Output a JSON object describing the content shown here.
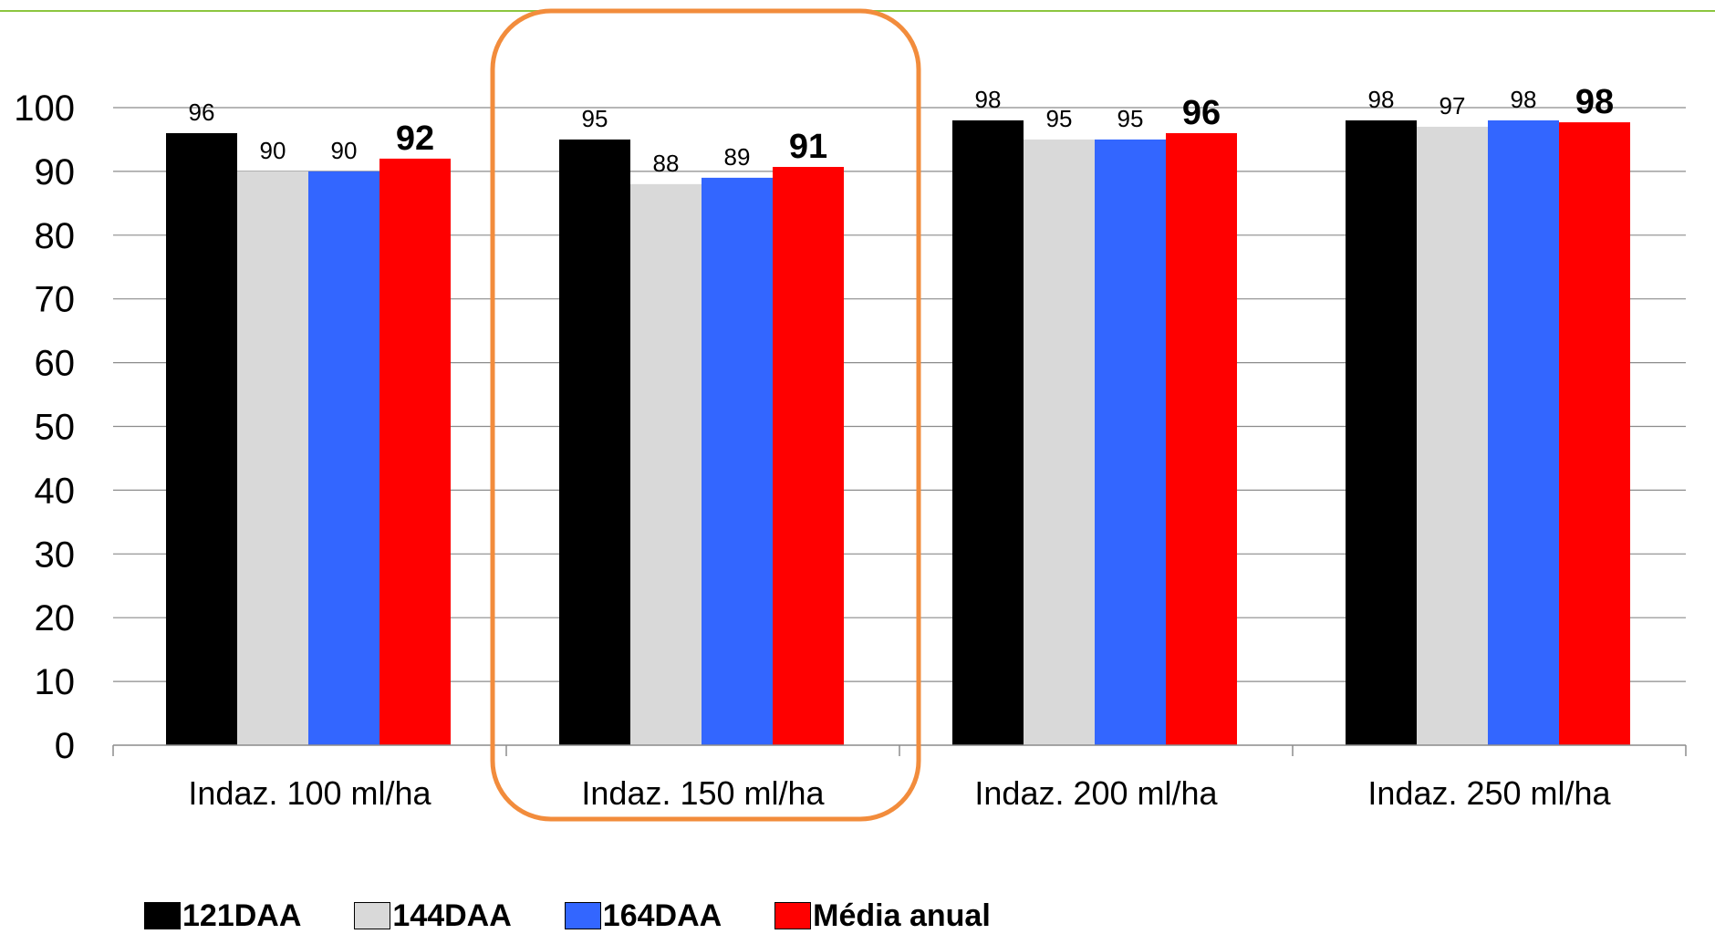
{
  "chart_data": {
    "type": "bar",
    "categories": [
      "Indaz. 100 ml/ha",
      "Indaz. 150 ml/ha",
      "Indaz. 200 ml/ha",
      "Indaz. 250 ml/ha"
    ],
    "series": [
      {
        "name": "121DAA",
        "color": "#000000",
        "values": [
          96,
          95,
          98,
          98
        ]
      },
      {
        "name": "144DAA",
        "color": "#d9d9d9",
        "values": [
          90,
          88,
          95,
          97
        ]
      },
      {
        "name": "164DAA",
        "color": "#3366ff",
        "values": [
          90,
          89,
          95,
          98
        ]
      },
      {
        "name": "Média anual",
        "color": "#ff0000",
        "values": [
          92,
          90.7,
          96,
          97.7
        ]
      }
    ],
    "data_labels": [
      [
        "96",
        "90",
        "90",
        "92"
      ],
      [
        "95",
        "88",
        "89",
        "91"
      ],
      [
        "98",
        "95",
        "95",
        "96"
      ],
      [
        "98",
        "97",
        "98",
        "98"
      ]
    ],
    "bold_series": "Média anual",
    "y_ticks": [
      "0",
      "10",
      "20",
      "30",
      "40",
      "50",
      "60",
      "70",
      "80",
      "90",
      "100"
    ],
    "ylim": [
      0,
      100
    ],
    "grid": true,
    "legend_position": "bottom",
    "highlighted_category": "Indaz. 150 ml/ha",
    "highlight_color": "#f28c3c",
    "accent_line_color": "#8cc63f"
  }
}
